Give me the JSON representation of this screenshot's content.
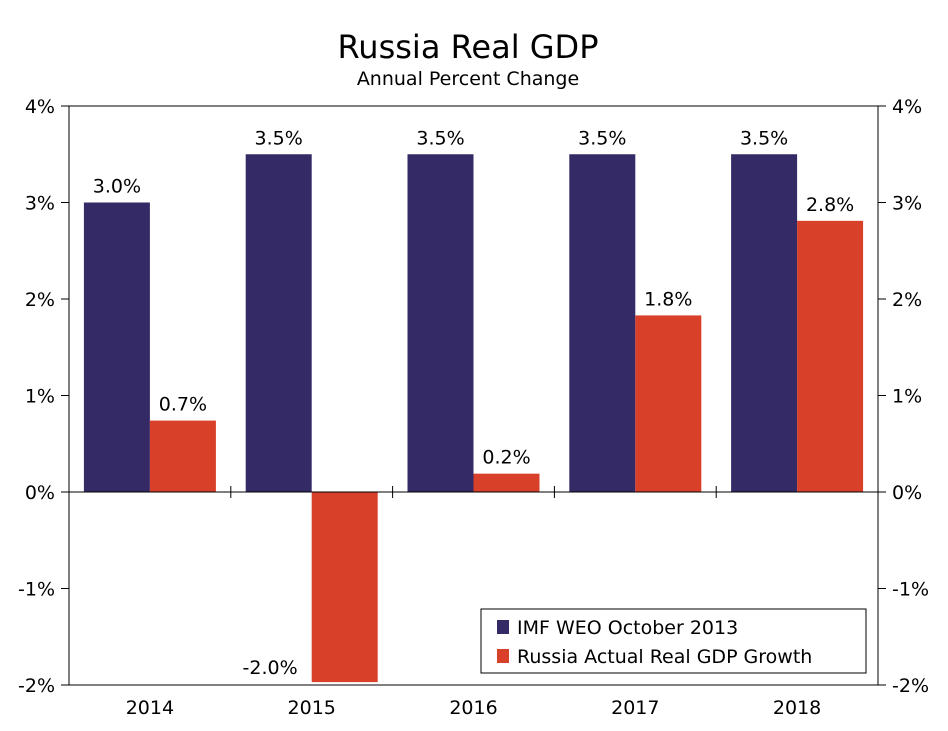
{
  "chart_data": {
    "type": "bar",
    "title": "Russia Real GDP",
    "subtitle": "Annual Percent Change",
    "categories": [
      "2014",
      "2015",
      "2016",
      "2017",
      "2018"
    ],
    "series": [
      {
        "name": "IMF WEO October 2013",
        "color": "#332A66",
        "values": [
          3.0,
          3.5,
          3.5,
          3.5,
          3.5
        ],
        "labels": [
          "3.0%",
          "3.5%",
          "3.5%",
          "3.5%",
          "3.5%"
        ]
      },
      {
        "name": "Russia Actual Real GDP Growth",
        "color": "#D9402A",
        "values": [
          0.74,
          -1.97,
          0.19,
          1.83,
          2.81
        ],
        "labels": [
          "0.7%",
          "-2.0%",
          "0.2%",
          "1.8%",
          "2.8%"
        ]
      }
    ],
    "yticks": [
      4,
      3,
      2,
      1,
      0,
      -1,
      -2
    ],
    "ytick_labels": [
      "4%",
      "3%",
      "2%",
      "1%",
      "0%",
      "-1%",
      "-2%"
    ],
    "ylim": [
      -2,
      4
    ],
    "legend_position": "bottom-right",
    "xlabel": "",
    "ylabel": ""
  }
}
